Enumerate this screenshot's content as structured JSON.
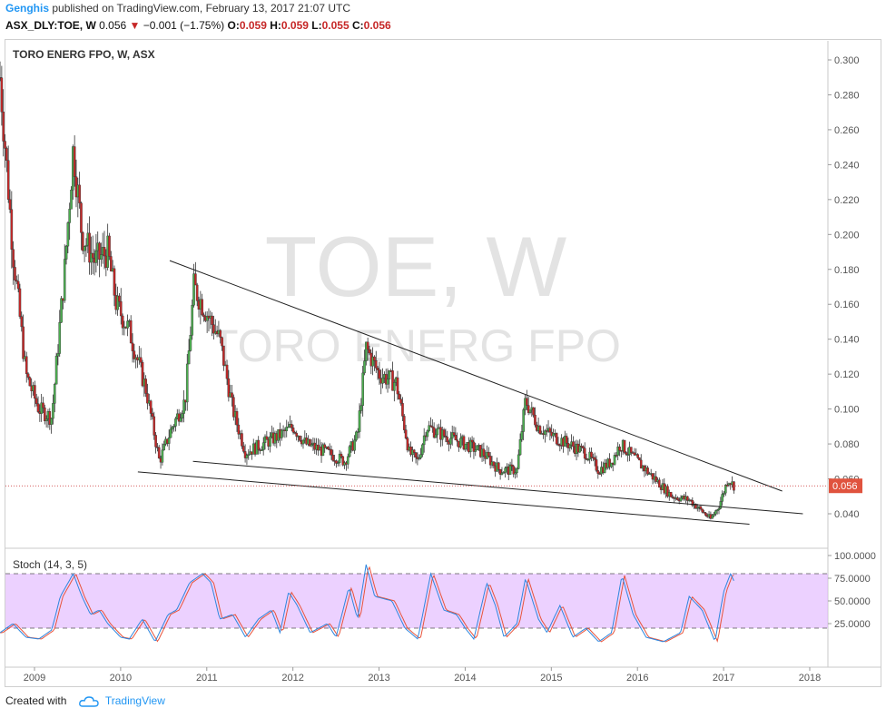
{
  "header": {
    "publisher": "Genghis",
    "published_text": "published on TradingView.com, February 13, 2017 21:07 UTC",
    "symbol": "ASX_DLY:TOE, W",
    "last": "0.056",
    "change_arrow": "▼",
    "change": "−0.001 (−1.75%)",
    "o_label": "O:",
    "o_val": "0.059",
    "h_label": "H:",
    "h_val": "0.059",
    "l_label": "L:",
    "l_val": "0.055",
    "c_label": "C:",
    "c_val": "0.056"
  },
  "footer": {
    "created_with": "Created with",
    "brand": "TradingView",
    "brand_icon": "tradingview-cloud-icon"
  },
  "colors": {
    "up": "#4caf50",
    "down": "#c62828",
    "stoch_k": "#2e86de",
    "stoch_d": "#e8533b",
    "stoch_band": "#e0b3ff",
    "price_label_bg": "#e0533e",
    "trendline": "#222222"
  },
  "chart_data": {
    "type": "candlestick",
    "title": "TORO ENERG FPO, W, ASX",
    "watermark_symbol": "TOE, W",
    "watermark_name": "TORO ENERG FPO",
    "last_price_label": "0.056",
    "price_axis": {
      "min": 0.025,
      "max": 0.31,
      "ticks": [
        "0.300",
        "0.280",
        "0.260",
        "0.240",
        "0.220",
        "0.200",
        "0.180",
        "0.160",
        "0.140",
        "0.120",
        "0.100",
        "0.080",
        "0.060",
        "0.040"
      ]
    },
    "time_axis": {
      "ticks": [
        "2009",
        "2010",
        "2011",
        "2012",
        "2013",
        "2014",
        "2015",
        "2016",
        "2017",
        "2018"
      ]
    },
    "price_path": [
      [
        "2008.60",
        0.29
      ],
      [
        "2008.75",
        0.19
      ],
      [
        "2008.90",
        0.12
      ],
      [
        "2009.05",
        0.1
      ],
      [
        "2009.20",
        0.095
      ],
      [
        "2009.35",
        0.18
      ],
      [
        "2009.45",
        0.25
      ],
      [
        "2009.55",
        0.2
      ],
      [
        "2009.70",
        0.185
      ],
      [
        "2009.85",
        0.19
      ],
      [
        "2009.95",
        0.16
      ],
      [
        "2010.10",
        0.145
      ],
      [
        "2010.30",
        0.11
      ],
      [
        "2010.45",
        0.07
      ],
      [
        "2010.60",
        0.09
      ],
      [
        "2010.75",
        0.105
      ],
      [
        "2010.85",
        0.17
      ],
      [
        "2011.00",
        0.155
      ],
      [
        "2011.15",
        0.14
      ],
      [
        "2011.30",
        0.1
      ],
      [
        "2011.45",
        0.075
      ],
      [
        "2011.65",
        0.08
      ],
      [
        "2011.85",
        0.085
      ],
      [
        "2012.00",
        0.09
      ],
      [
        "2012.15",
        0.08
      ],
      [
        "2012.40",
        0.075
      ],
      [
        "2012.60",
        0.07
      ],
      [
        "2012.75",
        0.085
      ],
      [
        "2012.85",
        0.135
      ],
      [
        "2013.00",
        0.12
      ],
      [
        "2013.20",
        0.115
      ],
      [
        "2013.35",
        0.075
      ],
      [
        "2013.45",
        0.07
      ],
      [
        "2013.55",
        0.09
      ],
      [
        "2013.75",
        0.085
      ],
      [
        "2014.00",
        0.08
      ],
      [
        "2014.20",
        0.075
      ],
      [
        "2014.40",
        0.065
      ],
      [
        "2014.60",
        0.065
      ],
      [
        "2014.70",
        0.105
      ],
      [
        "2014.85",
        0.09
      ],
      [
        "2015.00",
        0.085
      ],
      [
        "2015.20",
        0.08
      ],
      [
        "2015.40",
        0.075
      ],
      [
        "2015.55",
        0.065
      ],
      [
        "2015.70",
        0.07
      ],
      [
        "2015.80",
        0.08
      ],
      [
        "2016.00",
        0.07
      ],
      [
        "2016.20",
        0.06
      ],
      [
        "2016.40",
        0.05
      ],
      [
        "2016.60",
        0.048
      ],
      [
        "2016.85",
        0.037
      ],
      [
        "2016.95",
        0.045
      ],
      [
        "2017.05",
        0.06
      ],
      [
        "2017.12",
        0.056
      ]
    ],
    "trendlines": [
      {
        "name": "upper",
        "from": [
          "2010.57",
          0.185
        ],
        "to": [
          "2017.68",
          0.053
        ]
      },
      {
        "name": "middle",
        "from": [
          "2010.84",
          0.07
        ],
        "to": [
          "2017.92",
          0.04
        ]
      },
      {
        "name": "lower",
        "from": [
          "2010.20",
          0.064
        ],
        "to": [
          "2017.30",
          0.034
        ]
      }
    ],
    "stoch": {
      "title": "Stoch (14, 3, 5)",
      "ticks": [
        "100.0000",
        "75.0000",
        "50.0000",
        "25.0000"
      ],
      "band": [
        20,
        80
      ],
      "k_path": [
        [
          "2008.60",
          15
        ],
        [
          "2008.75",
          25
        ],
        [
          "2008.90",
          10
        ],
        [
          "2009.05",
          8
        ],
        [
          "2009.20",
          18
        ],
        [
          "2009.30",
          55
        ],
        [
          "2009.45",
          80
        ],
        [
          "2009.55",
          55
        ],
        [
          "2009.65",
          35
        ],
        [
          "2009.75",
          40
        ],
        [
          "2009.85",
          25
        ],
        [
          "2010.00",
          10
        ],
        [
          "2010.10",
          8
        ],
        [
          "2010.25",
          30
        ],
        [
          "2010.40",
          5
        ],
        [
          "2010.55",
          35
        ],
        [
          "2010.65",
          40
        ],
        [
          "2010.80",
          70
        ],
        [
          "2010.95",
          80
        ],
        [
          "2011.05",
          70
        ],
        [
          "2011.15",
          30
        ],
        [
          "2011.30",
          35
        ],
        [
          "2011.45",
          10
        ],
        [
          "2011.60",
          30
        ],
        [
          "2011.75",
          40
        ],
        [
          "2011.85",
          15
        ],
        [
          "2011.95",
          60
        ],
        [
          "2012.05",
          45
        ],
        [
          "2012.20",
          15
        ],
        [
          "2012.40",
          25
        ],
        [
          "2012.50",
          10
        ],
        [
          "2012.65",
          65
        ],
        [
          "2012.75",
          30
        ],
        [
          "2012.85",
          90
        ],
        [
          "2012.95",
          55
        ],
        [
          "2013.15",
          50
        ],
        [
          "2013.30",
          20
        ],
        [
          "2013.45",
          8
        ],
        [
          "2013.60",
          80
        ],
        [
          "2013.75",
          40
        ],
        [
          "2013.90",
          35
        ],
        [
          "2014.00",
          20
        ],
        [
          "2014.10",
          8
        ],
        [
          "2014.25",
          70
        ],
        [
          "2014.35",
          45
        ],
        [
          "2014.45",
          10
        ],
        [
          "2014.60",
          25
        ],
        [
          "2014.70",
          75
        ],
        [
          "2014.85",
          30
        ],
        [
          "2014.95",
          15
        ],
        [
          "2015.10",
          45
        ],
        [
          "2015.25",
          10
        ],
        [
          "2015.40",
          20
        ],
        [
          "2015.55",
          5
        ],
        [
          "2015.70",
          15
        ],
        [
          "2015.82",
          78
        ],
        [
          "2015.95",
          35
        ],
        [
          "2016.10",
          10
        ],
        [
          "2016.30",
          5
        ],
        [
          "2016.50",
          15
        ],
        [
          "2016.60",
          55
        ],
        [
          "2016.75",
          40
        ],
        [
          "2016.90",
          5
        ],
        [
          "2017.00",
          60
        ],
        [
          "2017.08",
          80
        ],
        [
          "2017.12",
          72
        ]
      ]
    }
  }
}
